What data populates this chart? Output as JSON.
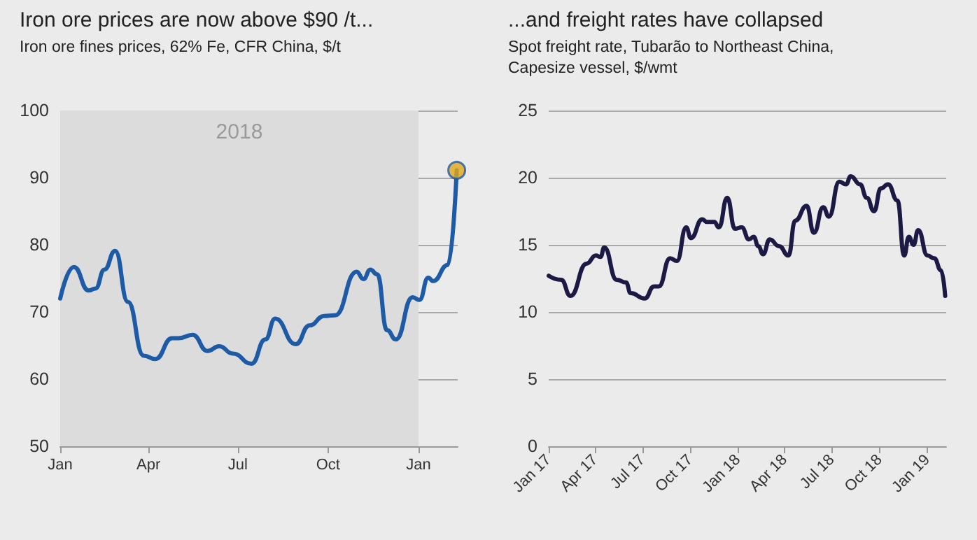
{
  "chart_data": [
    {
      "type": "line",
      "title": "Iron ore prices are now above $90 /t...",
      "subtitle": "Iron ore fines prices, 62% Fe, CFR China, $/t",
      "xlim": [
        "2018-01-01",
        "2019-02-10"
      ],
      "xticks": [
        {
          "value": "2018-01-01",
          "label": "Jan"
        },
        {
          "value": "2018-04-01",
          "label": "Apr"
        },
        {
          "value": "2018-07-01",
          "label": "Jul"
        },
        {
          "value": "2018-10-01",
          "label": "Oct"
        },
        {
          "value": "2019-01-01",
          "label": "Jan"
        }
      ],
      "ylim": [
        50,
        100
      ],
      "yticks": [
        50,
        60,
        70,
        80,
        90,
        100
      ],
      "grid": "y",
      "bands": [
        {
          "axis": "x",
          "from": "2018-01-01",
          "to": "2019-01-01",
          "label": "2018",
          "color": "#dcdcdc"
        }
      ],
      "series": [
        {
          "color": "#1d5ba6",
          "marker": "none",
          "line_style": "solid",
          "x": [
            "2018-01-01",
            "2018-01-15",
            "2018-01-30",
            "2018-02-06",
            "2018-02-15",
            "2018-02-26",
            "2018-03-11",
            "2018-03-27",
            "2018-04-08",
            "2018-04-25",
            "2018-05-02",
            "2018-05-16",
            "2018-05-31",
            "2018-06-12",
            "2018-06-26",
            "2018-07-15",
            "2018-07-29",
            "2018-08-08",
            "2018-08-29",
            "2018-09-12",
            "2018-09-27",
            "2018-10-08",
            "2018-10-30",
            "2018-11-06",
            "2018-11-13",
            "2018-11-20",
            "2018-11-30",
            "2018-12-09",
            "2018-12-26",
            "2019-01-02",
            "2019-01-11",
            "2019-01-16",
            "2019-01-31",
            "2019-02-09"
          ],
          "values": [
            72.0,
            76.7,
            73.2,
            73.5,
            76.3,
            79.1,
            71.5,
            63.5,
            63.0,
            66.1,
            66.1,
            66.6,
            64.2,
            64.9,
            63.8,
            62.3,
            65.9,
            69.0,
            65.2,
            68.0,
            69.4,
            69.5,
            76.0,
            74.9,
            76.3,
            75.6,
            67.3,
            65.9,
            72.2,
            71.8,
            75.1,
            74.6,
            77.0,
            91.1
          ]
        },
        {
          "type": "scatter",
          "color": "#e0a81c",
          "marker": "circle",
          "x": [
            "2019-02-09"
          ],
          "values": [
            91.1
          ]
        }
      ]
    },
    {
      "type": "line",
      "title": "...and freight rates have collapsed",
      "subtitle": "Spot freight rate, Tubarão to Northeast China, Capesize vessel, $/wmt",
      "xlim": [
        "2017-01-01",
        "2019-02-06"
      ],
      "xticks": [
        {
          "value": "2017-01-01",
          "label": "Jan 17"
        },
        {
          "value": "2017-04-01",
          "label": "Apr 17"
        },
        {
          "value": "2017-07-01",
          "label": "Jul 17"
        },
        {
          "value": "2017-10-01",
          "label": "Oct 17"
        },
        {
          "value": "2018-01-01",
          "label": "Jan 18"
        },
        {
          "value": "2018-04-01",
          "label": "Apr 18"
        },
        {
          "value": "2018-07-01",
          "label": "Jul 18"
        },
        {
          "value": "2018-10-01",
          "label": "Oct 18"
        },
        {
          "value": "2019-01-01",
          "label": "Jan 19"
        }
      ],
      "ylim": [
        0,
        25
      ],
      "yticks": [
        0,
        5,
        10,
        15,
        20,
        25
      ],
      "grid": "y",
      "series": [
        {
          "color": "#1c1a45",
          "marker": "none",
          "line_style": "solid",
          "x": [
            "2017-01-01",
            "2017-01-25",
            "2017-02-12",
            "2017-03-15",
            "2017-04-02",
            "2017-04-11",
            "2017-04-18",
            "2017-05-12",
            "2017-05-30",
            "2017-06-08",
            "2017-07-05",
            "2017-07-23",
            "2017-08-01",
            "2017-08-23",
            "2017-09-05",
            "2017-09-23",
            "2017-10-02",
            "2017-10-24",
            "2017-11-02",
            "2017-11-16",
            "2017-11-25",
            "2017-12-11",
            "2017-12-26",
            "2018-01-08",
            "2018-01-22",
            "2018-01-31",
            "2018-02-09",
            "2018-02-18",
            "2018-03-03",
            "2018-03-21",
            "2018-04-08",
            "2018-04-21",
            "2018-05-13",
            "2018-05-27",
            "2018-06-14",
            "2018-06-25",
            "2018-07-15",
            "2018-07-28",
            "2018-08-06",
            "2018-08-24",
            "2018-09-06",
            "2018-09-20",
            "2018-10-03",
            "2018-10-17",
            "2018-11-04",
            "2018-11-17",
            "2018-11-26",
            "2018-12-05",
            "2018-12-14",
            "2019-01-01",
            "2019-01-14",
            "2019-01-27",
            "2019-02-04"
          ],
          "values": [
            12.7,
            12.4,
            11.2,
            13.6,
            14.2,
            14.1,
            14.8,
            12.4,
            12.2,
            11.4,
            11.0,
            11.9,
            11.9,
            14.0,
            13.8,
            16.3,
            15.5,
            16.9,
            16.7,
            16.7,
            16.3,
            18.5,
            16.2,
            16.3,
            15.4,
            15.6,
            14.9,
            14.3,
            15.4,
            14.9,
            14.2,
            16.8,
            17.9,
            15.9,
            17.8,
            17.1,
            19.7,
            19.5,
            20.1,
            19.5,
            18.5,
            17.5,
            19.2,
            19.5,
            18.3,
            14.2,
            15.6,
            15.0,
            16.1,
            14.2,
            14.0,
            13.1,
            11.2
          ]
        }
      ]
    }
  ]
}
